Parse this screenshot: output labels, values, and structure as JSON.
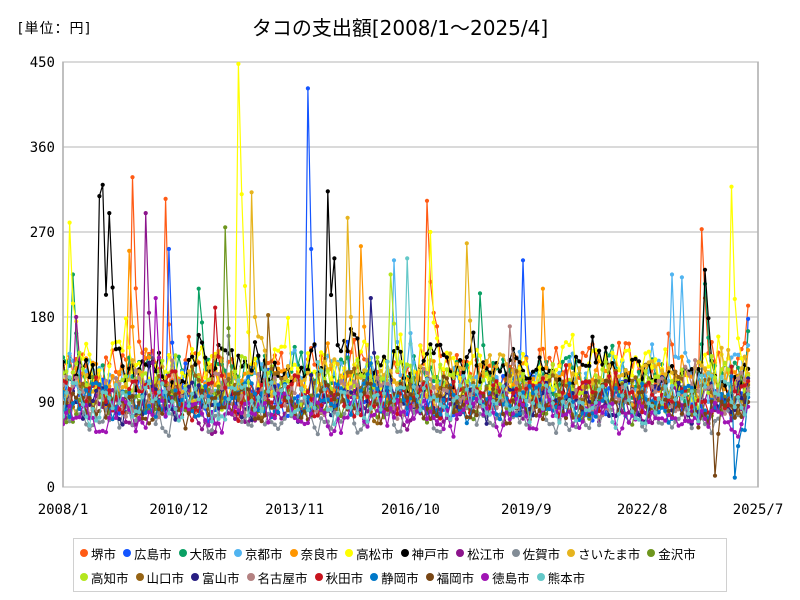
{
  "chart_data": {
    "type": "line",
    "title": "タコの支出額[2008/1～2025/4]",
    "unit_label": "[単位：円]",
    "x_start": "2008-01",
    "x_end": "2025-04",
    "xlim": [
      "2008-01",
      "2025-07"
    ],
    "xticks": [
      "2008/1",
      "2010/12",
      "2013/11",
      "2016/10",
      "2019/9",
      "2022/8",
      "2025/7"
    ],
    "ylim": [
      0,
      450
    ],
    "yticks": [
      0,
      90,
      180,
      270,
      360,
      450
    ],
    "grid": "horizontal",
    "legend_position": "bottom",
    "series": [
      {
        "name": "堺市",
        "color": "#ff5a14",
        "base": 120,
        "amp": 35,
        "peaks": [
          [
            "2009-10",
            328
          ],
          [
            "2010-08",
            305
          ],
          [
            "2017-03",
            303
          ],
          [
            "2024-02",
            273
          ]
        ],
        "end": 192
      },
      {
        "name": "広島市",
        "color": "#1455ff",
        "base": 95,
        "amp": 30,
        "peaks": [
          [
            "2014-03",
            422
          ],
          [
            "2014-04",
            252
          ],
          [
            "2010-09",
            252
          ],
          [
            "2019-08",
            240
          ]
        ],
        "end": 178
      },
      {
        "name": "大阪市",
        "color": "#0aa064",
        "base": 115,
        "amp": 30,
        "peaks": [
          [
            "2008-04",
            225
          ],
          [
            "2011-06",
            210
          ],
          [
            "2018-07",
            205
          ],
          [
            "2024-03",
            215
          ]
        ],
        "end": 165
      },
      {
        "name": "京都市",
        "color": "#50b4f0",
        "base": 110,
        "amp": 30,
        "peaks": [
          [
            "2016-05",
            240
          ],
          [
            "2023-05",
            225
          ],
          [
            "2023-08",
            222
          ]
        ],
        "end": 150
      },
      {
        "name": "奈良市",
        "color": "#ff9600",
        "base": 110,
        "amp": 30,
        "peaks": [
          [
            "2015-07",
            255
          ],
          [
            "2009-09",
            250
          ],
          [
            "2020-02",
            210
          ]
        ],
        "end": 145
      },
      {
        "name": "高松市",
        "color": "#ffff00",
        "base": 120,
        "amp": 35,
        "peaks": [
          [
            "2012-06",
            448
          ],
          [
            "2012-07",
            310
          ],
          [
            "2024-11",
            318
          ],
          [
            "2017-04",
            270
          ],
          [
            "2008-03",
            280
          ]
        ],
        "end": 110
      },
      {
        "name": "神戸市",
        "color": "#000000",
        "base": 120,
        "amp": 30,
        "peaks": [
          [
            "2009-01",
            320
          ],
          [
            "2008-12",
            308
          ],
          [
            "2009-03",
            290
          ],
          [
            "2014-09",
            313
          ],
          [
            "2014-11",
            242
          ],
          [
            "2024-03",
            230
          ]
        ],
        "end": 125
      },
      {
        "name": "松江市",
        "color": "#8c148c",
        "base": 85,
        "amp": 25,
        "peaks": [
          [
            "2010-02",
            290
          ],
          [
            "2008-05",
            180
          ]
        ],
        "end": 95
      },
      {
        "name": "佐賀市",
        "color": "#828c96",
        "base": 75,
        "amp": 22,
        "peaks": [
          [
            "2012-03",
            160
          ]
        ],
        "end": 105
      },
      {
        "name": "さいたま市",
        "color": "#e6b41e",
        "base": 110,
        "amp": 30,
        "peaks": [
          [
            "2012-10",
            312
          ],
          [
            "2015-03",
            285
          ],
          [
            "2018-03",
            258
          ]
        ],
        "end": 120
      },
      {
        "name": "金沢市",
        "color": "#6e961e",
        "base": 90,
        "amp": 25,
        "peaks": [
          [
            "2012-02",
            275
          ]
        ],
        "end": 100
      },
      {
        "name": "高知市",
        "color": "#b4e61e",
        "base": 105,
        "amp": 30,
        "peaks": [
          [
            "2016-04",
            225
          ]
        ],
        "end": 118
      },
      {
        "name": "山口市",
        "color": "#966414",
        "base": 95,
        "amp": 25,
        "peaks": [
          [
            "2013-03",
            182
          ]
        ],
        "end": 108
      },
      {
        "name": "富山市",
        "color": "#281e82",
        "base": 90,
        "amp": 25,
        "peaks": [
          [
            "2015-10",
            200
          ]
        ],
        "end": 115
      },
      {
        "name": "名古屋市",
        "color": "#b48282",
        "base": 95,
        "amp": 25,
        "peaks": [
          [
            "2019-04",
            170
          ]
        ],
        "end": 102
      },
      {
        "name": "秋田市",
        "color": "#c8141e",
        "base": 95,
        "amp": 25,
        "peaks": [
          [
            "2011-11",
            190
          ]
        ],
        "end": 112
      },
      {
        "name": "静岡市",
        "color": "#0078c8",
        "base": 90,
        "amp": 25,
        "peaks": [
          [
            "2024-12",
            10
          ]
        ],
        "end": 95
      },
      {
        "name": "福岡市",
        "color": "#784614",
        "base": 85,
        "amp": 25,
        "peaks": [
          [
            "2024-06",
            12
          ]
        ],
        "end": 90
      },
      {
        "name": "徳島市",
        "color": "#a014b4",
        "base": 75,
        "amp": 22,
        "peaks": [
          [
            "2010-05",
            200
          ]
        ],
        "end": 85
      },
      {
        "name": "熊本市",
        "color": "#64c8c8",
        "base": 90,
        "amp": 28,
        "peaks": [
          [
            "2016-09",
            242
          ]
        ],
        "end": 98
      }
    ]
  }
}
